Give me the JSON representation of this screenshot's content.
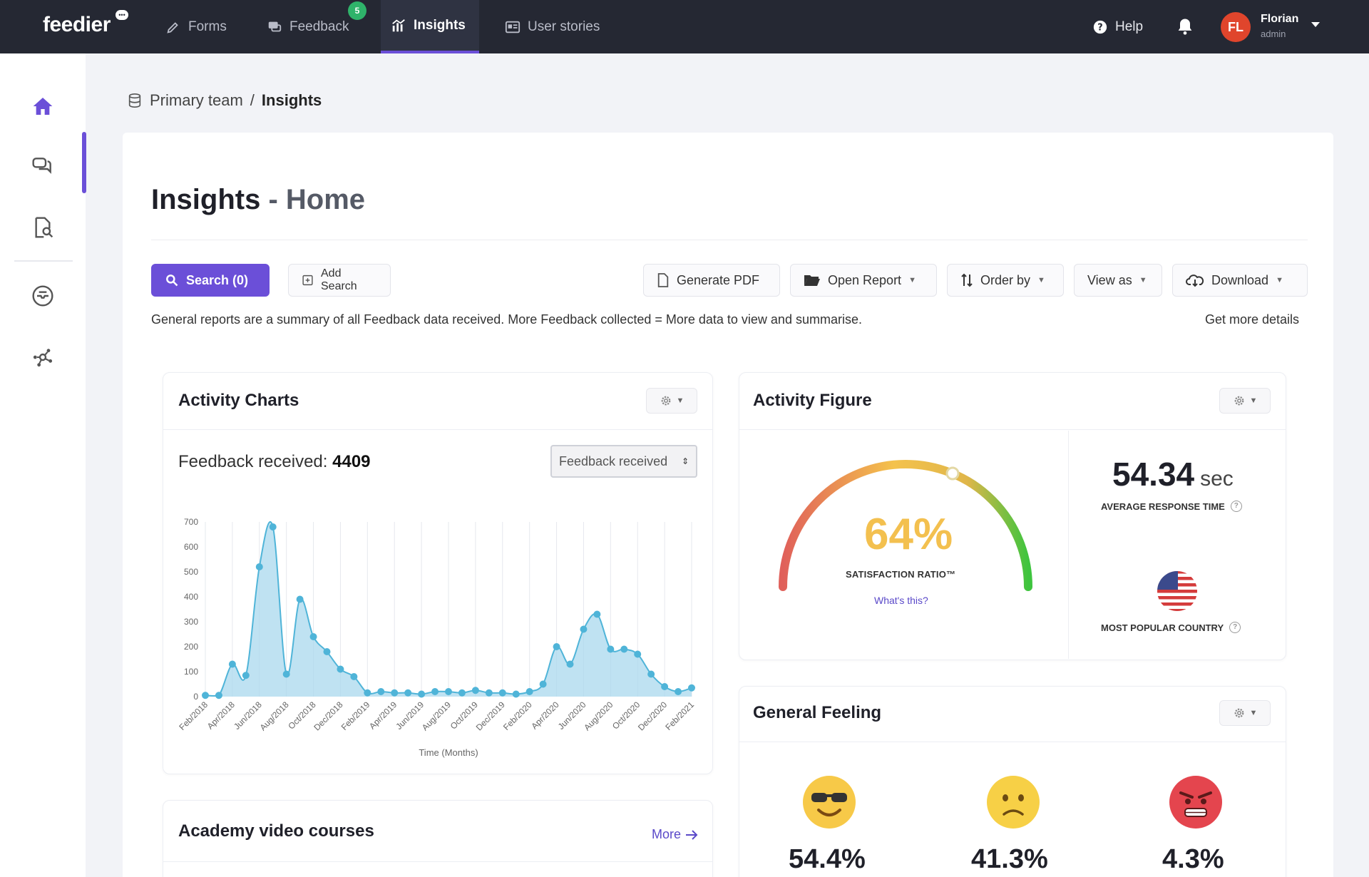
{
  "brand": {
    "name": "feedier"
  },
  "nav": {
    "items": [
      {
        "label": "Forms",
        "icon": "forms-icon"
      },
      {
        "label": "Feedback",
        "icon": "feedback-icon",
        "badge": "5"
      },
      {
        "label": "Insights",
        "icon": "insights-icon",
        "active": true
      },
      {
        "label": "User stories",
        "icon": "user-stories-icon"
      }
    ],
    "help_label": "Help",
    "user": {
      "initials": "FL",
      "name": "Florian",
      "role": "admin"
    }
  },
  "sidebar": {
    "items": [
      {
        "icon": "home-icon",
        "active": true
      },
      {
        "icon": "chat-bubbles-icon"
      },
      {
        "icon": "document-search-icon"
      },
      {
        "icon": "inbox-icon"
      },
      {
        "icon": "network-icon"
      }
    ]
  },
  "breadcrumb": {
    "team": "Primary team",
    "separator": "/",
    "current": "Insights"
  },
  "page": {
    "title": "Insights",
    "subtitle": "- Home"
  },
  "toolbar": {
    "search_label": "Search (0)",
    "add_search_label": "Add Search",
    "generate_pdf_label": "Generate PDF",
    "open_report_label": "Open Report",
    "order_by_label": "Order by",
    "view_as_label": "View as",
    "download_label": "Download"
  },
  "info": {
    "text": "General reports are a summary of all Feedback data received. More Feedback collected = More data to view and summarise.",
    "link": "Get more details"
  },
  "activity_charts": {
    "title": "Activity Charts",
    "metric_label": "Feedback received:",
    "metric_value": "4409",
    "select_value": "Feedback received"
  },
  "activity_figure": {
    "title": "Activity Figure",
    "satisfaction_pct": "64%",
    "satisfaction_value": 0.64,
    "satisfaction_label": "SATISFACTION RATIO™",
    "whats_this": "What's this?",
    "avg_time_value": "54.34",
    "avg_time_unit": "sec",
    "avg_time_label": "AVERAGE RESPONSE TIME",
    "country_label": "MOST POPULAR COUNTRY",
    "country_flag_icon": "us-flag-icon"
  },
  "general_feeling": {
    "title": "General Feeling",
    "items": [
      {
        "icon": "cool-smile-emoji-icon",
        "pct": "54.4%"
      },
      {
        "icon": "sad-face-emoji-icon",
        "pct": "41.3%"
      },
      {
        "icon": "angry-face-emoji-icon",
        "pct": "4.3%"
      }
    ]
  },
  "academy": {
    "title": "Academy video courses",
    "more_label": "More"
  },
  "colors": {
    "accent": "#6b4fd8",
    "topbar": "#252833",
    "chart_fill": "#a9d8ee",
    "chart_line": "#4fb4d8"
  },
  "chart_data": {
    "type": "area",
    "title": "",
    "xlabel": "Time (Months)",
    "ylabel": "",
    "ylim": [
      0,
      700
    ],
    "yticks": [
      0,
      100,
      200,
      300,
      400,
      500,
      600,
      700
    ],
    "tick_labels": [
      "Feb/2018",
      "Apr/2018",
      "Jun/2018",
      "Aug/2018",
      "Oct/2018",
      "Dec/2018",
      "Feb/2019",
      "Apr/2019",
      "Jun/2019",
      "Aug/2019",
      "Oct/2019",
      "Dec/2019",
      "Feb/2020",
      "Apr/2020",
      "Jun/2020",
      "Aug/2020",
      "Oct/2020",
      "Dec/2020",
      "Feb/2021"
    ],
    "grid": true,
    "legend": "none",
    "series": [
      {
        "values": [
          5,
          5,
          130,
          85,
          520,
          680,
          90,
          390,
          240,
          180,
          110,
          80,
          15,
          20,
          15,
          15,
          10,
          20,
          20,
          15,
          25,
          15,
          15,
          10,
          20,
          50,
          200,
          130,
          270,
          330,
          190,
          190,
          170,
          90,
          40,
          20,
          35
        ]
      }
    ]
  }
}
